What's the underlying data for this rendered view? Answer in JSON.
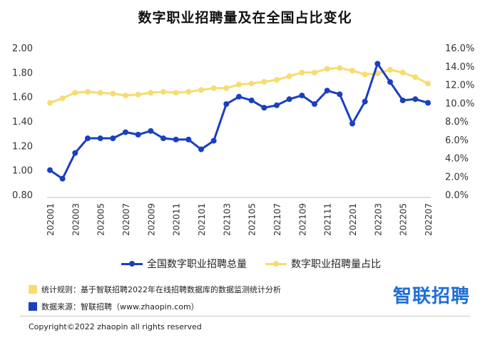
{
  "title": "数字职业招聘量及在全国占比变化",
  "chart_data": {
    "type": "line",
    "title": "数字职业招聘量及在全国占比变化",
    "x": [
      "202001",
      "202002",
      "202003",
      "202004",
      "202005",
      "202006",
      "202007",
      "202008",
      "202009",
      "202010",
      "202011",
      "202012",
      "202101",
      "202102",
      "202103",
      "202104",
      "202105",
      "202106",
      "202107",
      "202108",
      "202109",
      "202110",
      "202111",
      "202112",
      "202201",
      "202202",
      "202203",
      "202204",
      "202205",
      "202206",
      "202207"
    ],
    "x_tick_labels": [
      "202001",
      "202003",
      "202005",
      "202007",
      "202009",
      "202011",
      "202101",
      "202103",
      "202105",
      "202107",
      "202109",
      "202111",
      "202201",
      "202203",
      "202205",
      "202207"
    ],
    "y_left_ticks": [
      "0.80",
      "1.00",
      "1.20",
      "1.40",
      "1.60",
      "1.80",
      "2.00"
    ],
    "y_right_ticks": [
      "0.0%",
      "2.0%",
      "4.0%",
      "6.0%",
      "8.0%",
      "10.0%",
      "12.0%",
      "14.0%",
      "16.0%"
    ],
    "ylim_left": [
      0.8,
      2.0
    ],
    "ylim_right": [
      0,
      16
    ],
    "series": [
      {
        "name": "全国数字职业招聘总量",
        "axis": "left",
        "color": "#1a3fbf",
        "values": [
          1.0,
          0.93,
          1.14,
          1.26,
          1.26,
          1.26,
          1.31,
          1.29,
          1.32,
          1.26,
          1.25,
          1.25,
          1.17,
          1.24,
          1.54,
          1.6,
          1.57,
          1.51,
          1.53,
          1.58,
          1.61,
          1.54,
          1.65,
          1.62,
          1.38,
          1.56,
          1.87,
          1.72,
          1.57,
          1.58,
          1.55
        ]
      },
      {
        "name": "数字职业招聘量占比",
        "axis": "right",
        "color": "#f7dc6f",
        "values": [
          10.0,
          10.5,
          11.1,
          11.2,
          11.1,
          11.0,
          10.8,
          10.9,
          11.1,
          11.2,
          11.1,
          11.2,
          11.4,
          11.6,
          11.6,
          12.0,
          12.1,
          12.3,
          12.5,
          12.9,
          13.3,
          13.3,
          13.7,
          13.8,
          13.5,
          13.1,
          13.2,
          13.6,
          13.3,
          12.8,
          12.1
        ]
      }
    ],
    "grid": false,
    "legend": "bottom"
  },
  "notes": {
    "rule_color": "#f7dc6f",
    "rule_text": "统计规则：基于智联招聘2022年在线招聘数据库的数据监测统计分析",
    "source_color": "#1a3fbf",
    "source_text": "数据来源：智联招聘（www.zhaopin.com）"
  },
  "brand": "智联招聘",
  "copyright": "Copyright©2022 zhaopin all rights reserved"
}
